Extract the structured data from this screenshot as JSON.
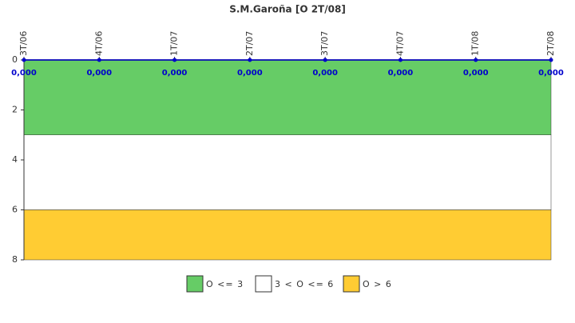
{
  "chart_data": {
    "type": "line",
    "title": "S.M.Garoña [O 2T/08]",
    "categories": [
      "3T/06",
      "4T/06",
      "1T/07",
      "2T/07",
      "3T/07",
      "4T/07",
      "1T/08",
      "2T/08"
    ],
    "series": [
      {
        "color": "#0000cc",
        "values": [
          0,
          0,
          0,
          0,
          0,
          0,
          0,
          0
        ],
        "value_labels": [
          "0,000",
          "0,000",
          "0,000",
          "0,000",
          "0,000",
          "0,000",
          "0,000",
          "0,000"
        ]
      }
    ],
    "ylim": [
      0,
      8
    ],
    "yticks": [
      0,
      2,
      4,
      6,
      8
    ],
    "y_inverted": true,
    "x_axis_position": "top",
    "bands": [
      {
        "name": "O <= 3",
        "from": 0,
        "to": 3,
        "color": "#66cc66"
      },
      {
        "name": "3 < O <= 6",
        "from": 3,
        "to": 6,
        "color": "#ffffff"
      },
      {
        "name": "O > 6",
        "from": 6,
        "to": 8,
        "color": "#ffcc33"
      }
    ],
    "legend": "bottom"
  }
}
